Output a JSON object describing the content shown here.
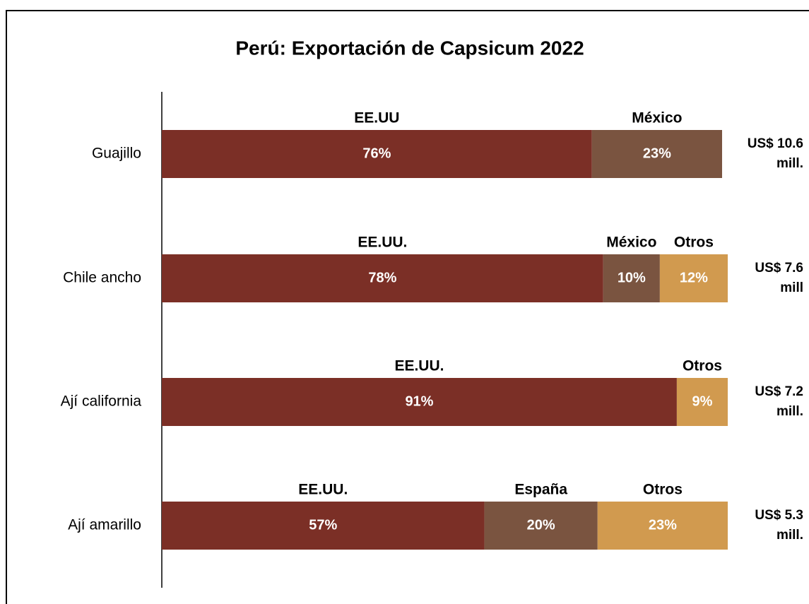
{
  "chart_data": {
    "type": "stacked_bar_horizontal",
    "title": "Perú: Exportación de Capsicum 2022",
    "xlim": [
      0,
      100
    ],
    "categories": [
      "Guajillo",
      "Chile ancho",
      "Ají california",
      "Ají amarillo"
    ],
    "bars": [
      {
        "segments": [
          {
            "name": "EE.UU",
            "value": 76,
            "value_label": "76%",
            "color": "#7b2f26"
          },
          {
            "name": "México",
            "value": 23,
            "value_label": "23%",
            "color": "#7a5440"
          }
        ],
        "total_label": "US$ 10.6 mill."
      },
      {
        "segments": [
          {
            "name": "EE.UU.",
            "value": 78,
            "value_label": "78%",
            "color": "#7b2f26"
          },
          {
            "name": "México",
            "value": 10,
            "value_label": "10%",
            "color": "#7a5440"
          },
          {
            "name": "Otros",
            "value": 12,
            "value_label": "12%",
            "color": "#d19a4f"
          }
        ],
        "total_label": "US$ 7.6 mill"
      },
      {
        "segments": [
          {
            "name": "EE.UU.",
            "value": 91,
            "value_label": "91%",
            "color": "#7b2f26"
          },
          {
            "name": "Otros",
            "value": 9,
            "value_label": "9%",
            "color": "#d19a4f"
          }
        ],
        "total_label": "US$ 7.2 mill."
      },
      {
        "segments": [
          {
            "name": "EE.UU.",
            "value": 57,
            "value_label": "57%",
            "color": "#7b2f26"
          },
          {
            "name": "España",
            "value": 20,
            "value_label": "20%",
            "color": "#7a5440"
          },
          {
            "name": "Otros",
            "value": 23,
            "value_label": "23%",
            "color": "#d19a4f"
          }
        ],
        "total_label": "US$ 5.3 mill."
      }
    ]
  }
}
